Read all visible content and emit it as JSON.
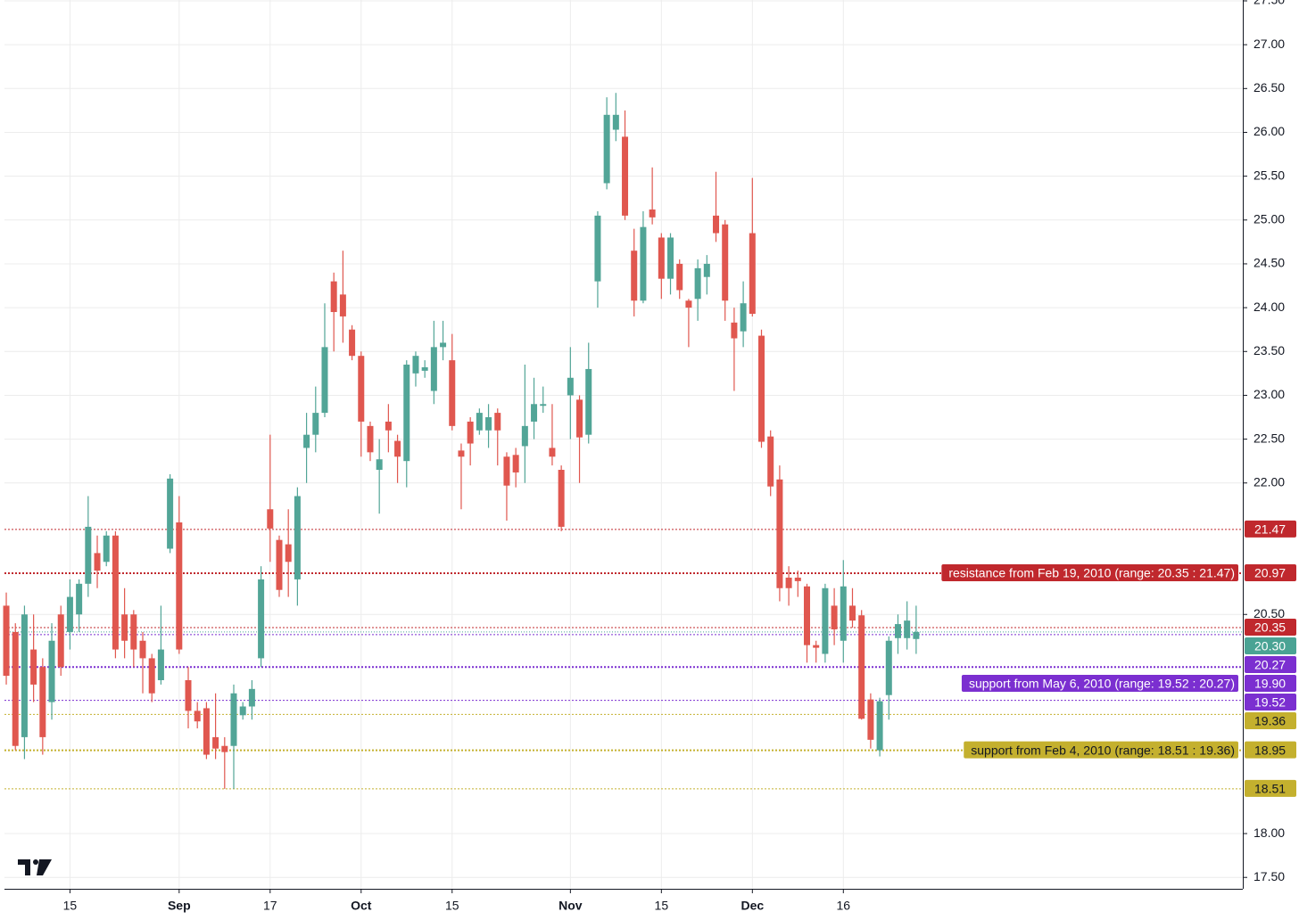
{
  "chart_data": {
    "type": "candlestick",
    "xlim": [
      -0.2,
      135.9
    ],
    "ylim": [
      17.37,
      27.51
    ],
    "grid": true,
    "up_color": "#52a597",
    "down_color": "#e0574f",
    "yticks": [
      {
        "value": 17.5,
        "label": "17.50"
      },
      {
        "value": 18,
        "label": "18.00"
      },
      {
        "value": 20.5,
        "label": "20.50"
      },
      {
        "value": 22,
        "label": "22.00"
      },
      {
        "value": 22.5,
        "label": "22.50"
      },
      {
        "value": 23,
        "label": "23.00"
      },
      {
        "value": 23.5,
        "label": "23.50"
      },
      {
        "value": 24,
        "label": "24.00"
      },
      {
        "value": 24.5,
        "label": "24.50"
      },
      {
        "value": 25,
        "label": "25.00"
      },
      {
        "value": 25.5,
        "label": "25.50"
      },
      {
        "value": 26,
        "label": "26.00"
      },
      {
        "value": 26.5,
        "label": "26.50"
      },
      {
        "value": 27,
        "label": "27.00"
      },
      {
        "value": 27.5,
        "label": "27.50"
      }
    ],
    "xticks": [
      {
        "value": 7,
        "label": "15"
      },
      {
        "value": 19,
        "label": "Sep"
      },
      {
        "value": 29,
        "label": "17"
      },
      {
        "value": 39,
        "label": "Oct"
      },
      {
        "value": 49,
        "label": "15"
      },
      {
        "value": 62,
        "label": "Nov"
      },
      {
        "value": 72,
        "label": "15"
      },
      {
        "value": 82,
        "label": "Dec"
      },
      {
        "value": 92,
        "label": "16"
      }
    ],
    "open": [
      20.6,
      20.3,
      19.1,
      20.1,
      19.9,
      19.5,
      20.5,
      20.3,
      20.5,
      20.85,
      21.2,
      21.1,
      21.4,
      20.5,
      20.5,
      20.2,
      20.0,
      19.75,
      21.25,
      21.55,
      19.75,
      19.4,
      19.43,
      19.1,
      19.0,
      19.0,
      19.35,
      19.45,
      20.0,
      21.7,
      21.35,
      21.3,
      20.9,
      22.4,
      22.55,
      22.8,
      24.3,
      24.15,
      23.75,
      23.45,
      22.65,
      22.15,
      22.7,
      22.48,
      22.25,
      23.25,
      23.28,
      23.05,
      23.55,
      23.4,
      22.37,
      22.7,
      22.6,
      22.6,
      22.8,
      22.3,
      22.32,
      22.42,
      22.7,
      22.88,
      22.4,
      22.15,
      23.0,
      22.95,
      22.55,
      24.3,
      25.42,
      26.03,
      25.95,
      24.65,
      24.08,
      25.12,
      24.8,
      24.33,
      24.5,
      24.08,
      24.1,
      24.35,
      25.05,
      24.95,
      23.83,
      23.73,
      24.85,
      23.68,
      22.53,
      22.04,
      20.92,
      20.92,
      20.82,
      20.15,
      20.05,
      20.6,
      20.2,
      20.6,
      20.49,
      19.53,
      18.95,
      19.58,
      20.23,
      20.23,
      20.22
    ],
    "high": [
      20.75,
      20.4,
      20.6,
      20.5,
      20.0,
      20.4,
      20.6,
      20.9,
      20.9,
      21.85,
      21.4,
      21.45,
      21.45,
      20.8,
      20.55,
      20.3,
      20.05,
      20.6,
      22.1,
      21.85,
      19.9,
      19.5,
      19.5,
      19.6,
      19.1,
      19.7,
      19.5,
      19.75,
      21.05,
      22.55,
      21.4,
      21.7,
      21.95,
      22.8,
      23.1,
      24.05,
      24.4,
      24.65,
      23.8,
      23.5,
      22.7,
      22.5,
      22.9,
      22.55,
      23.4,
      23.5,
      23.4,
      23.85,
      23.85,
      23.7,
      22.45,
      22.75,
      22.85,
      22.9,
      22.85,
      22.35,
      22.4,
      23.35,
      23.2,
      23.1,
      22.9,
      22.2,
      23.55,
      23.0,
      23.6,
      25.1,
      26.4,
      26.45,
      26.25,
      24.9,
      25.1,
      25.6,
      24.85,
      24.85,
      24.55,
      24.1,
      24.55,
      24.6,
      25.55,
      25.0,
      24.0,
      24.3,
      25.48,
      23.75,
      22.6,
      22.2,
      21.05,
      21.0,
      20.85,
      20.2,
      20.85,
      20.8,
      21.12,
      20.8,
      20.55,
      19.6,
      19.55,
      20.25,
      20.5,
      20.65,
      20.6
    ],
    "low": [
      19.7,
      18.95,
      18.85,
      19.5,
      18.9,
      19.3,
      19.8,
      20.1,
      20.3,
      20.7,
      20.8,
      21.05,
      20.0,
      20.0,
      19.9,
      19.6,
      19.5,
      19.7,
      21.2,
      20.05,
      19.2,
      19.2,
      18.85,
      18.85,
      18.51,
      18.51,
      19.3,
      19.3,
      19.9,
      21.1,
      20.7,
      20.7,
      20.6,
      22.0,
      22.35,
      22.75,
      23.5,
      23.6,
      23.4,
      22.3,
      22.25,
      21.65,
      22.35,
      22.0,
      21.95,
      23.1,
      23.2,
      22.9,
      23.4,
      22.6,
      21.7,
      22.2,
      22.55,
      22.4,
      22.2,
      21.57,
      21.95,
      22.0,
      22.5,
      22.8,
      22.2,
      21.45,
      22.5,
      22.0,
      22.45,
      24.0,
      25.35,
      25.9,
      25.0,
      23.9,
      24.05,
      24.95,
      24.1,
      24.15,
      24.1,
      23.55,
      23.85,
      24.15,
      24.75,
      23.85,
      23.05,
      23.55,
      23.9,
      22.4,
      21.85,
      20.65,
      20.6,
      20.7,
      19.95,
      19.95,
      19.95,
      20.15,
      19.95,
      20.35,
      19.3,
      18.97,
      18.88,
      19.3,
      20.05,
      20.1,
      20.05
    ],
    "close": [
      19.8,
      19.0,
      20.5,
      19.7,
      19.1,
      20.2,
      19.9,
      20.7,
      20.85,
      21.5,
      21.0,
      21.4,
      20.1,
      20.2,
      20.1,
      20.0,
      19.6,
      20.1,
      22.05,
      20.1,
      19.4,
      19.28,
      18.9,
      18.97,
      18.93,
      19.6,
      19.45,
      19.65,
      20.9,
      21.48,
      20.78,
      21.1,
      21.85,
      22.55,
      22.8,
      23.55,
      23.95,
      23.9,
      23.45,
      22.7,
      22.35,
      22.27,
      22.6,
      22.3,
      23.35,
      23.45,
      23.32,
      23.55,
      23.6,
      22.65,
      22.3,
      22.45,
      22.8,
      22.75,
      22.6,
      21.97,
      22.12,
      22.65,
      22.9,
      22.9,
      22.3,
      21.5,
      23.2,
      22.52,
      23.3,
      25.05,
      26.2,
      26.2,
      25.05,
      24.08,
      24.92,
      25.03,
      24.33,
      24.8,
      24.2,
      24.0,
      24.45,
      24.5,
      24.85,
      24.08,
      23.65,
      24.05,
      23.93,
      22.47,
      21.96,
      20.8,
      20.8,
      20.88,
      20.15,
      20.12,
      20.8,
      20.33,
      20.82,
      20.43,
      19.31,
      19.07,
      19.51,
      20.2,
      20.39,
      20.43,
      20.3
    ],
    "bands": [
      {
        "name": "resistance from Feb 19, 2010 (range: 20.35 : 21.47)",
        "color": "#c0282d",
        "text_color": "#ffffff",
        "low": {
          "value": 20.35,
          "label": "20.35"
        },
        "mid": {
          "value": 20.97,
          "label": "20.97"
        },
        "high": {
          "value": 21.47,
          "label": "21.47"
        }
      },
      {
        "name": "support from May 6, 2010 (range: 19.52 : 20.27)",
        "color": "#7b2fd0",
        "text_color": "#ffffff",
        "low": {
          "value": 19.52,
          "label": "19.52"
        },
        "mid": {
          "value": 19.9,
          "label": "19.90"
        },
        "high": {
          "value": 20.27,
          "label": "20.27"
        }
      },
      {
        "name": "support from Feb 4, 2010 (range: 18.51 : 19.36)",
        "color": "#c4b02e",
        "text_color": "#131722",
        "low": {
          "value": 18.51,
          "label": "18.51"
        },
        "mid": {
          "value": 18.95,
          "label": "18.95"
        },
        "high": {
          "value": 19.36,
          "label": "19.36"
        }
      }
    ],
    "last_price": {
      "value": 20.3,
      "label": "20.30",
      "color": "#4aa394"
    }
  }
}
